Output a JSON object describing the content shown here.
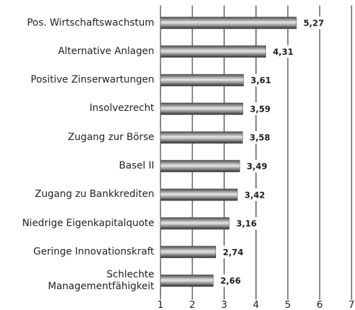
{
  "chart_data": {
    "type": "bar",
    "orientation": "horizontal",
    "categories": [
      "Pos. Wirtschaftswachstum",
      "Alternative Anlagen",
      "Positive Zinserwartungen",
      "Insolvezrecht",
      "Zugang zur Börse",
      "Basel II",
      "Zugang zu Bankkrediten",
      "Niedrige Eigenkapitalquote",
      "Geringe Innovationskraft",
      "Schlechte\nManagementfähigkeit"
    ],
    "values": [
      5.27,
      4.31,
      3.61,
      3.59,
      3.58,
      3.49,
      3.42,
      3.16,
      2.74,
      2.66
    ],
    "value_labels": [
      "5,27",
      "4,31",
      "3,61",
      "3,59",
      "3,58",
      "3,49",
      "3,42",
      "3,16",
      "2,74",
      "2,66"
    ],
    "color": "#555555",
    "xlim": [
      1,
      7
    ],
    "xticks": [
      1,
      2,
      3,
      4,
      5,
      6,
      7
    ],
    "grid": true
  }
}
